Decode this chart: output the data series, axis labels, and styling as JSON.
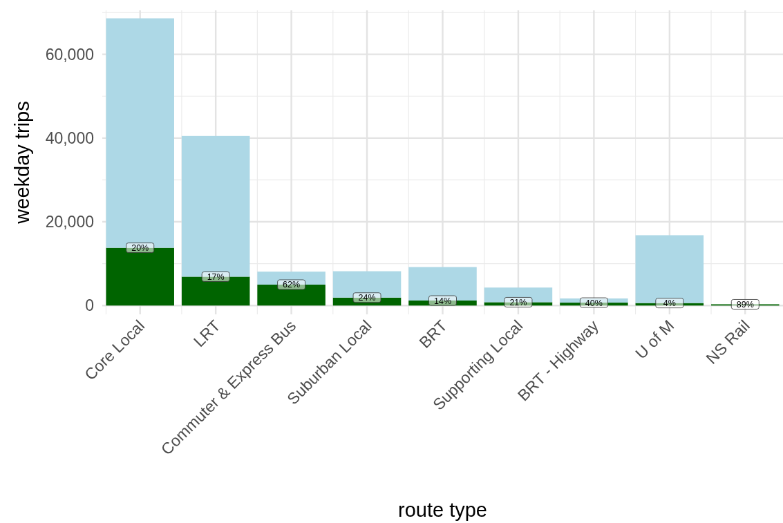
{
  "chart_data": {
    "type": "bar",
    "xlabel": "route type",
    "ylabel": "weekday trips",
    "categories": [
      "Core Local",
      "LRT",
      "Commuter & Express Bus",
      "Suburban Local",
      "BRT",
      "Supporting Local",
      "BRT - Highway",
      "U of M",
      "NS Rail"
    ],
    "stacked": true,
    "series": [
      {
        "color": "#006400",
        "values": [
          13800,
          6900,
          5000,
          1900,
          1200,
          800,
          700,
          600,
          300
        ]
      },
      {
        "color": "#add8e6",
        "values": [
          54800,
          33600,
          3100,
          6300,
          8000,
          3500,
          1000,
          16200,
          null
        ]
      }
    ],
    "annotations": [
      {
        "text": "20%",
        "x": "Core Local",
        "y": 13800
      },
      {
        "text": "17%",
        "x": "LRT",
        "y": 6900
      },
      {
        "text": "62%",
        "x": "Commuter & Express Bus",
        "y": 5000
      },
      {
        "text": "24%",
        "x": "Suburban Local",
        "y": 1900
      },
      {
        "text": "14%",
        "x": "BRT",
        "y": 1200
      },
      {
        "text": "21%",
        "x": "Supporting Local",
        "y": 800
      },
      {
        "text": "40%",
        "x": "BRT - Highway",
        "y": 700
      },
      {
        "text": "4%",
        "x": "U of M",
        "y": 600
      },
      {
        "text": "89%",
        "x": "NS Rail",
        "y": 300
      }
    ],
    "ylim": [
      -2100,
      70500
    ],
    "yticks": [
      {
        "value": 0,
        "label": "0"
      },
      {
        "value": 20000,
        "label": "20,000"
      },
      {
        "value": 40000,
        "label": "40,000"
      },
      {
        "value": 60000,
        "label": "60,000"
      }
    ],
    "grid": true
  }
}
